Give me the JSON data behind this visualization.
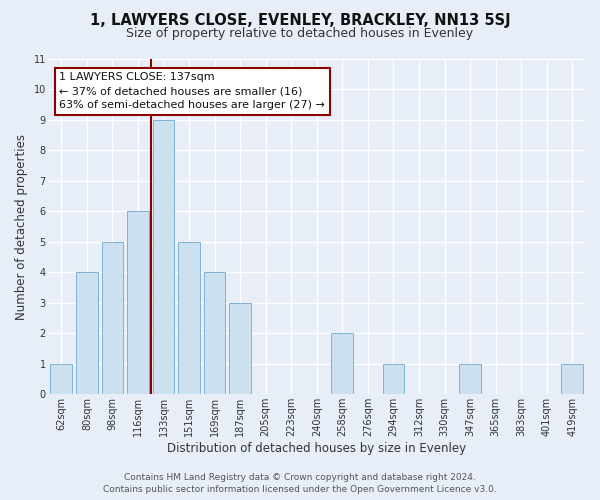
{
  "title": "1, LAWYERS CLOSE, EVENLEY, BRACKLEY, NN13 5SJ",
  "subtitle": "Size of property relative to detached houses in Evenley",
  "xlabel": "Distribution of detached houses by size in Evenley",
  "ylabel": "Number of detached properties",
  "bar_labels": [
    "62sqm",
    "80sqm",
    "98sqm",
    "116sqm",
    "133sqm",
    "151sqm",
    "169sqm",
    "187sqm",
    "205sqm",
    "223sqm",
    "240sqm",
    "258sqm",
    "276sqm",
    "294sqm",
    "312sqm",
    "330sqm",
    "347sqm",
    "365sqm",
    "383sqm",
    "401sqm",
    "419sqm"
  ],
  "bar_values": [
    1,
    4,
    5,
    6,
    9,
    5,
    4,
    3,
    0,
    0,
    0,
    2,
    0,
    1,
    0,
    0,
    1,
    0,
    0,
    0,
    1
  ],
  "bar_color": "#cce0f0",
  "bar_edgecolor": "#7ab4d8",
  "highlight_index": 4,
  "vline_color": "#8b0000",
  "ylim": [
    0,
    11
  ],
  "yticks": [
    0,
    1,
    2,
    3,
    4,
    5,
    6,
    7,
    8,
    9,
    10,
    11
  ],
  "annotation_title": "1 LAWYERS CLOSE: 137sqm",
  "annotation_line1": "← 37% of detached houses are smaller (16)",
  "annotation_line2": "63% of semi-detached houses are larger (27) →",
  "annotation_box_facecolor": "#ffffff",
  "annotation_box_edgecolor": "#8b0000",
  "footer_line1": "Contains HM Land Registry data © Crown copyright and database right 2024.",
  "footer_line2": "Contains public sector information licensed under the Open Government Licence v3.0.",
  "bg_color": "#e8eef8",
  "plot_bg_color": "#e8eef8",
  "grid_color": "#ffffff",
  "title_fontsize": 10.5,
  "subtitle_fontsize": 9,
  "axis_label_fontsize": 8.5,
  "tick_fontsize": 7,
  "footer_fontsize": 6.5,
  "annotation_fontsize": 8
}
